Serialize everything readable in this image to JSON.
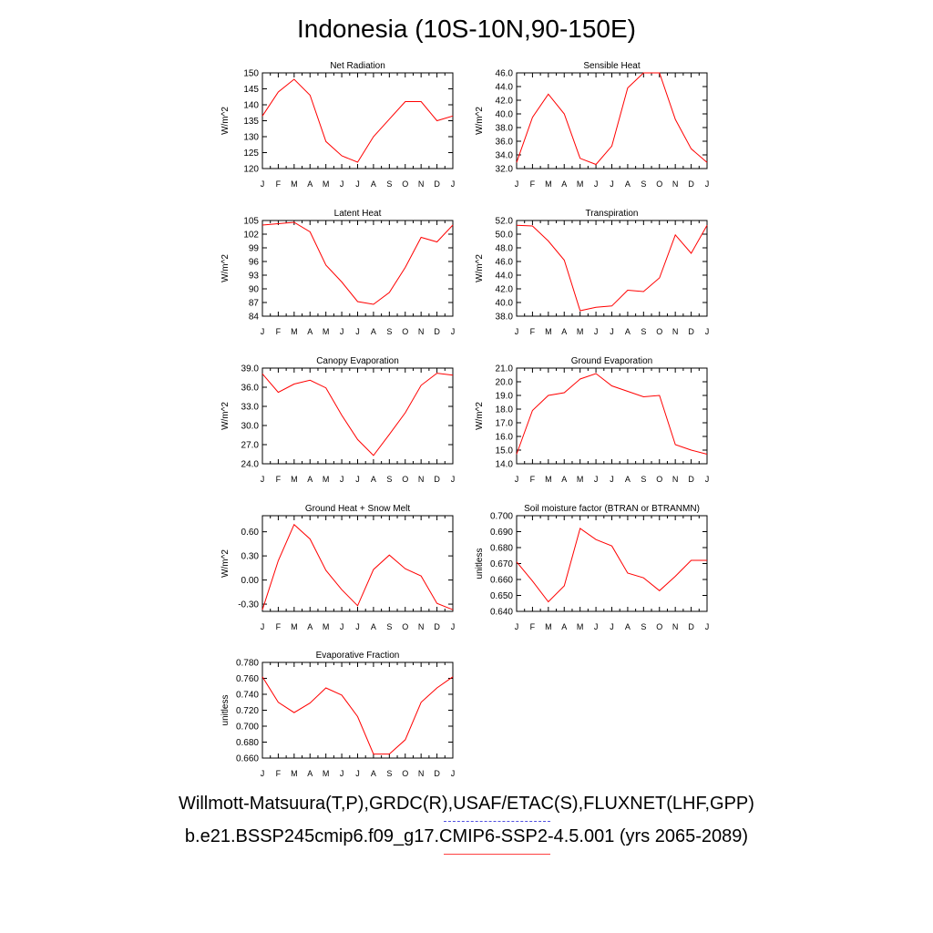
{
  "title": "Indonesia (10S-10N,90-150E)",
  "legend": {
    "observed_label": "Willmott-Matsuura(T,P),GRDC(R),USAF/ETAC(S),FLUXNET(LHF,GPP)",
    "model_label": "b.e21.BSSP245cmip6.f09_g17.CMIP6-SSP2-4.5.001 (yrs 2065-2089)",
    "observed_color": "#5050e0",
    "model_color": "#ff0000"
  },
  "chart_data": [
    {
      "type": "line",
      "title": "Net Radiation",
      "ylabel": "W/m^2",
      "x": [
        "J",
        "F",
        "M",
        "A",
        "M",
        "J",
        "J",
        "A",
        "S",
        "O",
        "N",
        "D",
        "J"
      ],
      "ylim": [
        120,
        150
      ],
      "yticks": [
        "120",
        "125",
        "130",
        "135",
        "140",
        "145",
        "150"
      ],
      "yticks_values": [
        120,
        125,
        130,
        135,
        140,
        145,
        150
      ],
      "series": [
        {
          "values": [
            136.5,
            144.0,
            148.0,
            143.0,
            128.5,
            124.0,
            122.0,
            130.0,
            135.5,
            141.0,
            141.0,
            135.0,
            136.5
          ],
          "color": "#ff0000"
        }
      ]
    },
    {
      "type": "line",
      "title": "Sensible Heat",
      "ylabel": "W/m^2",
      "x": [
        "J",
        "F",
        "M",
        "A",
        "M",
        "J",
        "J",
        "A",
        "S",
        "O",
        "N",
        "D",
        "J"
      ],
      "ylim": [
        32,
        46
      ],
      "yticks": [
        "32.0",
        "34.0",
        "36.0",
        "38.0",
        "40.0",
        "42.0",
        "44.0",
        "46.0"
      ],
      "yticks_values": [
        32,
        34,
        36,
        38,
        40,
        42,
        44,
        46
      ],
      "series": [
        {
          "values": [
            32.9,
            39.5,
            42.9,
            40.0,
            33.5,
            32.6,
            35.3,
            43.8,
            46.0,
            46.0,
            39.2,
            34.9,
            32.9
          ],
          "color": "#ff0000"
        }
      ]
    },
    {
      "type": "line",
      "title": "Latent Heat",
      "ylabel": "W/m^2",
      "x": [
        "J",
        "F",
        "M",
        "A",
        "M",
        "J",
        "J",
        "A",
        "S",
        "O",
        "N",
        "D",
        "J"
      ],
      "ylim": [
        84,
        105
      ],
      "yticks": [
        "84",
        "87",
        "90",
        "93",
        "96",
        "99",
        "102",
        "105"
      ],
      "yticks_values": [
        84,
        87,
        90,
        93,
        96,
        99,
        102,
        105
      ],
      "series": [
        {
          "values": [
            104.0,
            104.3,
            104.6,
            102.5,
            95.2,
            91.5,
            87.2,
            86.6,
            89.2,
            94.7,
            101.3,
            100.3,
            104.0
          ],
          "color": "#ff0000"
        }
      ]
    },
    {
      "type": "line",
      "title": "Transpiration",
      "ylabel": "W/m^2",
      "x": [
        "J",
        "F",
        "M",
        "A",
        "M",
        "J",
        "J",
        "A",
        "S",
        "O",
        "N",
        "D",
        "J"
      ],
      "ylim": [
        38,
        52
      ],
      "yticks": [
        "38.0",
        "40.0",
        "42.0",
        "44.0",
        "46.0",
        "48.0",
        "50.0",
        "52.0"
      ],
      "yticks_values": [
        38,
        40,
        42,
        44,
        46,
        48,
        50,
        52
      ],
      "series": [
        {
          "values": [
            51.3,
            51.2,
            49.0,
            46.2,
            38.8,
            39.3,
            39.5,
            41.8,
            41.6,
            43.6,
            49.9,
            47.2,
            51.3
          ],
          "color": "#ff0000"
        }
      ]
    },
    {
      "type": "line",
      "title": "Canopy Evaporation",
      "ylabel": "W/m^2",
      "x": [
        "J",
        "F",
        "M",
        "A",
        "M",
        "J",
        "J",
        "A",
        "S",
        "O",
        "N",
        "D",
        "J"
      ],
      "ylim": [
        24,
        39
      ],
      "yticks": [
        "24.0",
        "27.0",
        "30.0",
        "33.0",
        "36.0",
        "39.0"
      ],
      "yticks_values": [
        24,
        27,
        30,
        33,
        36,
        39
      ],
      "series": [
        {
          "values": [
            38.1,
            35.2,
            36.5,
            37.1,
            35.9,
            31.6,
            27.8,
            25.3,
            28.6,
            32.0,
            36.3,
            38.2,
            37.9
          ],
          "color": "#ff0000"
        }
      ]
    },
    {
      "type": "line",
      "title": "Ground Evaporation",
      "ylabel": "W/m^2",
      "x": [
        "J",
        "F",
        "M",
        "A",
        "M",
        "J",
        "J",
        "A",
        "S",
        "O",
        "N",
        "D",
        "J"
      ],
      "ylim": [
        14,
        21
      ],
      "yticks": [
        "14.0",
        "15.0",
        "16.0",
        "17.0",
        "18.0",
        "19.0",
        "20.0",
        "21.0"
      ],
      "yticks_values": [
        14,
        15,
        16,
        17,
        18,
        19,
        20,
        21
      ],
      "series": [
        {
          "values": [
            14.7,
            17.9,
            19.0,
            19.2,
            20.2,
            20.6,
            19.7,
            19.3,
            18.9,
            19.0,
            15.4,
            15.0,
            14.7
          ],
          "color": "#ff0000"
        }
      ]
    },
    {
      "type": "line",
      "title": "Ground Heat + Snow Melt",
      "ylabel": "W/m^2",
      "x": [
        "J",
        "F",
        "M",
        "A",
        "M",
        "J",
        "J",
        "A",
        "S",
        "O",
        "N",
        "D",
        "J"
      ],
      "ylim": [
        -0.39,
        0.8
      ],
      "yticks": [
        "-0.30",
        "0.00",
        "0.30",
        "0.60"
      ],
      "yticks_values": [
        -0.3,
        0.0,
        0.3,
        0.6
      ],
      "series": [
        {
          "values": [
            -0.37,
            0.24,
            0.69,
            0.51,
            0.12,
            -0.12,
            -0.32,
            0.13,
            0.31,
            0.14,
            0.05,
            -0.29,
            -0.37
          ],
          "color": "#ff0000"
        }
      ]
    },
    {
      "type": "line",
      "title": "Soil moisture factor (BTRAN or BTRANMN)",
      "ylabel": "unitless",
      "x": [
        "J",
        "F",
        "M",
        "A",
        "M",
        "J",
        "J",
        "A",
        "S",
        "O",
        "N",
        "D",
        "J"
      ],
      "ylim": [
        0.64,
        0.7
      ],
      "yticks": [
        "0.640",
        "0.650",
        "0.660",
        "0.670",
        "0.680",
        "0.690",
        "0.700"
      ],
      "yticks_values": [
        0.64,
        0.65,
        0.66,
        0.67,
        0.68,
        0.69,
        0.7
      ],
      "series": [
        {
          "values": [
            0.671,
            0.659,
            0.646,
            0.656,
            0.692,
            0.685,
            0.681,
            0.664,
            0.661,
            0.653,
            0.662,
            0.672,
            0.672
          ],
          "color": "#ff0000"
        }
      ]
    },
    {
      "type": "line",
      "title": "Evaporative Fraction",
      "ylabel": "unitless",
      "x": [
        "J",
        "F",
        "M",
        "A",
        "M",
        "J",
        "J",
        "A",
        "S",
        "O",
        "N",
        "D",
        "J"
      ],
      "ylim": [
        0.66,
        0.78
      ],
      "yticks": [
        "0.660",
        "0.680",
        "0.700",
        "0.720",
        "0.740",
        "0.760",
        "0.780"
      ],
      "yticks_values": [
        0.66,
        0.68,
        0.7,
        0.72,
        0.74,
        0.76,
        0.78
      ],
      "series": [
        {
          "values": [
            0.762,
            0.73,
            0.717,
            0.729,
            0.748,
            0.739,
            0.712,
            0.665,
            0.665,
            0.683,
            0.73,
            0.748,
            0.762
          ],
          "color": "#ff0000"
        }
      ]
    }
  ]
}
